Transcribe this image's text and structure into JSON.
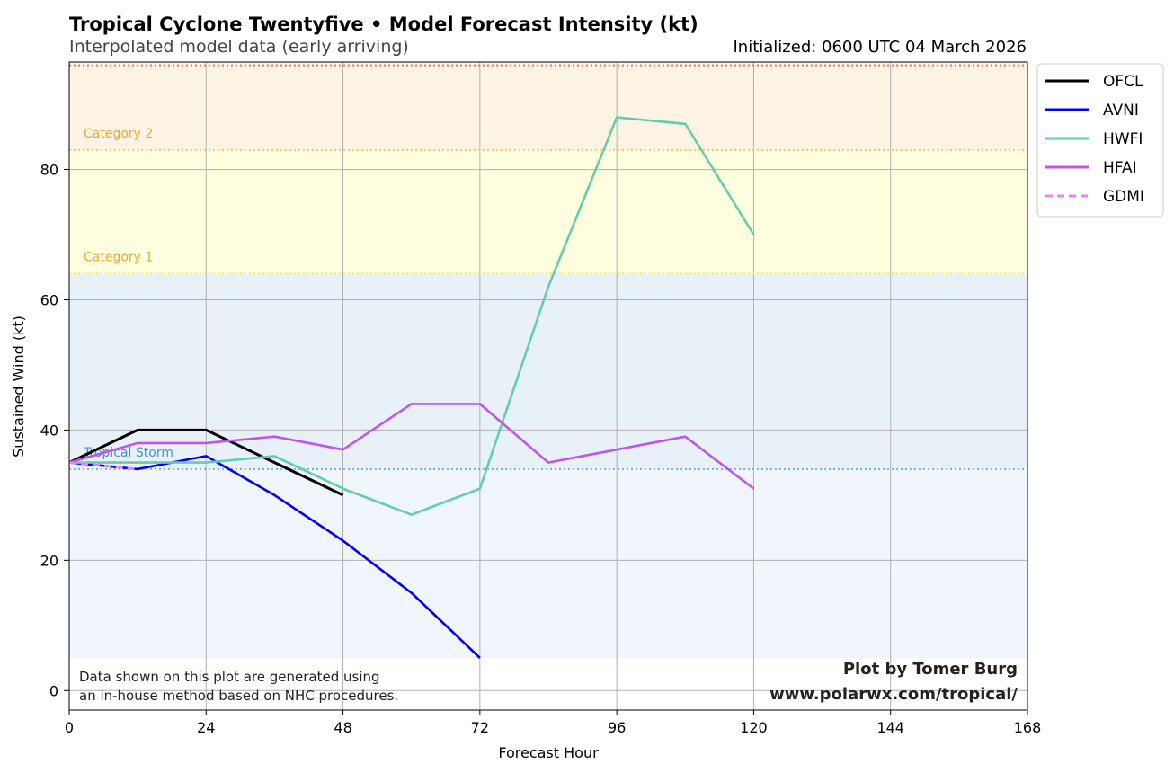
{
  "chart_data": {
    "type": "line",
    "title": "Tropical Cyclone Twentyfive • Model Forecast Intensity (kt)",
    "subtitle": "Interpolated model data (early arriving)",
    "initialized": "Initialized: 0600 UTC 04 March 2026",
    "xlabel": "Forecast Hour",
    "ylabel": "Sustained Wind (kt)",
    "xlim": [
      0,
      168
    ],
    "ylim": [
      -3,
      96.5
    ],
    "xticks": [
      0,
      24,
      48,
      72,
      96,
      120,
      144,
      168
    ],
    "yticks": [
      0,
      20,
      40,
      60,
      80
    ],
    "grid": true,
    "legend_position": "outside-right-top",
    "bands": [
      {
        "label": "",
        "from": 5,
        "to": 34,
        "color": "#f0f6fb"
      },
      {
        "label": "Tropical Storm",
        "from": 34,
        "to": 64,
        "color": "#e9f1f8",
        "line_color": "#6fb4e0",
        "label_color": "#4a90c8"
      },
      {
        "label": "Category 1",
        "from": 64,
        "to": 83,
        "color": "#ffffe0",
        "line_color": "#f3e65a",
        "label_color": "#e8a838"
      },
      {
        "label": "Category 2",
        "from": 83,
        "to": 96,
        "color": "#fdf4e3",
        "line_color": "#f5c36a",
        "label_color": "#e8a838"
      },
      {
        "label": "",
        "from": 96,
        "to": 96.5,
        "color": "#fdf4e3",
        "line_color": "#e87070"
      }
    ],
    "series": [
      {
        "name": "OFCL",
        "color": "#000000",
        "dash": false,
        "x": [
          0,
          12,
          24,
          36,
          48
        ],
        "y": [
          35,
          40,
          40,
          35,
          30
        ]
      },
      {
        "name": "AVNI",
        "color": "#0000ee",
        "dash": false,
        "x": [
          0,
          12,
          24,
          36,
          48,
          60,
          72
        ],
        "y": [
          35,
          34,
          36,
          30,
          23,
          15,
          5
        ]
      },
      {
        "name": "HWFI",
        "color": "#66cdaa",
        "dash": false,
        "x": [
          0,
          12,
          24,
          36,
          48,
          60,
          72,
          84,
          96,
          108,
          120
        ],
        "y": [
          35,
          35,
          35,
          36,
          31,
          27,
          31,
          62,
          88,
          87,
          70
        ]
      },
      {
        "name": "HFAI",
        "color": "#bf55ec",
        "dash": false,
        "x": [
          0,
          12,
          24,
          36,
          48,
          60,
          72,
          84,
          96,
          108,
          120
        ],
        "y": [
          35,
          38,
          38,
          39,
          37,
          44,
          44,
          35,
          37,
          39,
          31
        ]
      },
      {
        "name": "GDMI",
        "color": "#ee82ee",
        "dash": true,
        "x": [
          0,
          12
        ],
        "y": [
          35,
          34
        ]
      }
    ]
  },
  "footnote": {
    "line1": "Data shown on this plot are generated using",
    "line2": "an in-house method based on NHC procedures."
  },
  "credit": {
    "line1": "Plot by Tomer Burg",
    "line2": "www.polarwx.com/tropical/"
  }
}
